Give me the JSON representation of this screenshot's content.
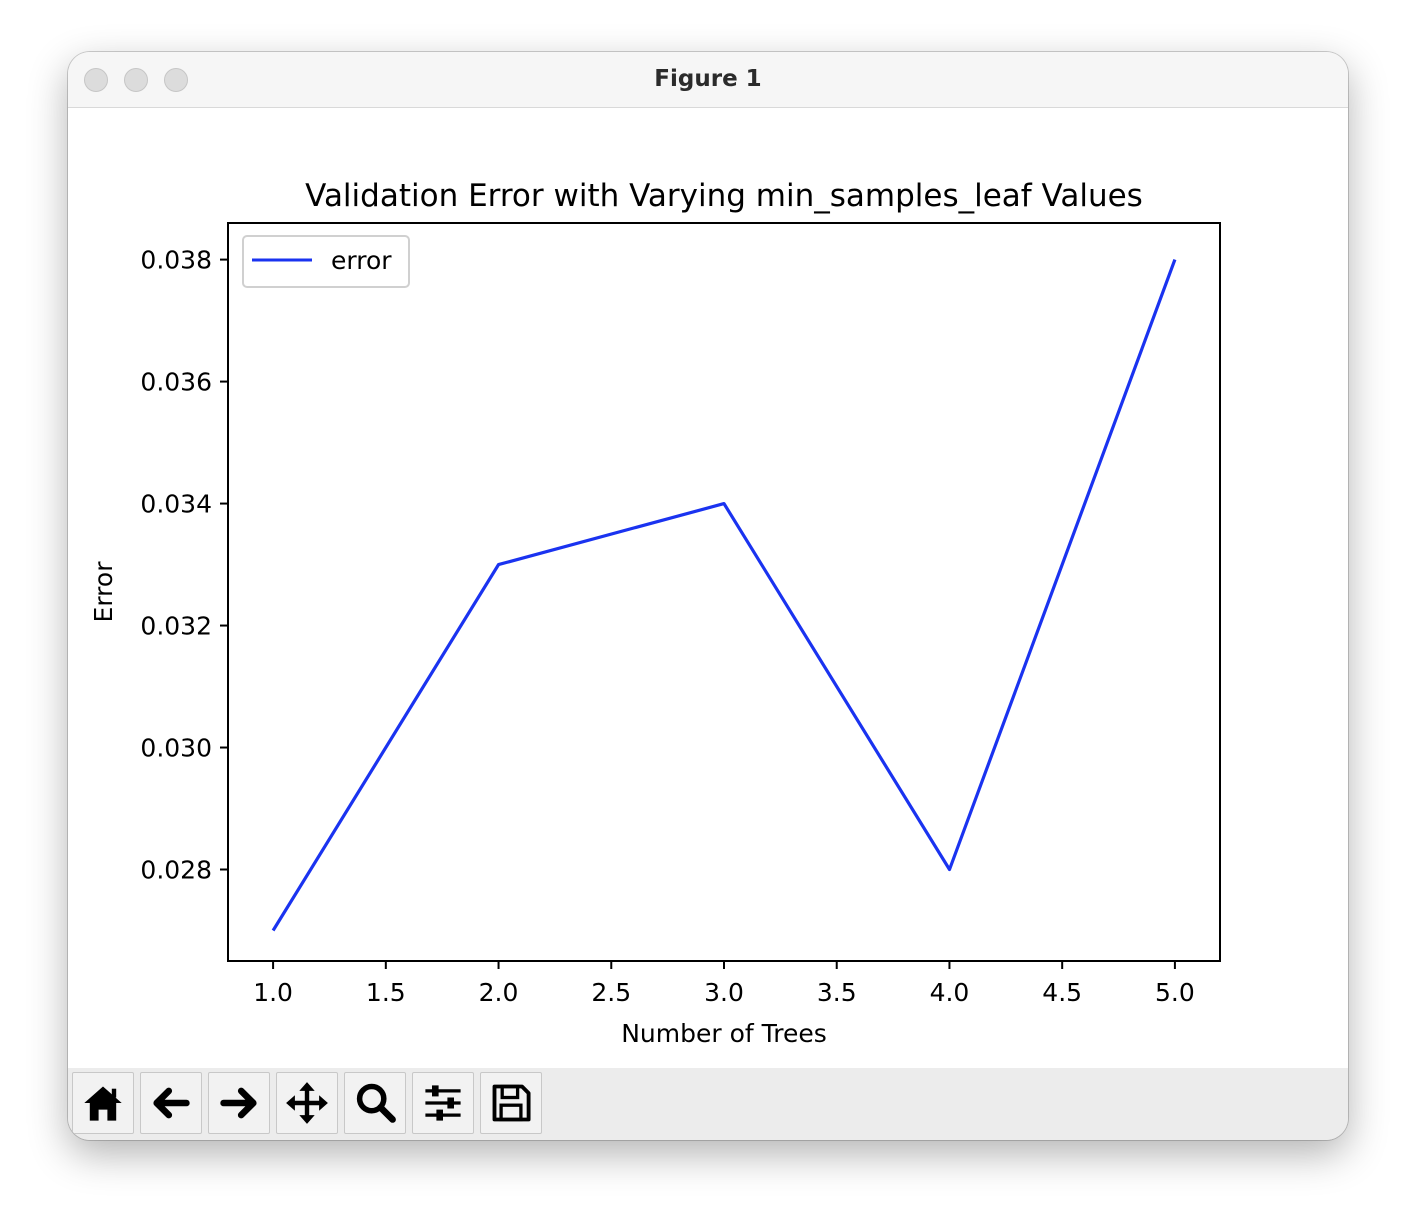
{
  "window": {
    "title": "Figure 1"
  },
  "toolbar": {
    "buttons": [
      {
        "name": "home-button",
        "icon": "home-icon"
      },
      {
        "name": "back-button",
        "icon": "arrow-left-icon"
      },
      {
        "name": "forward-button",
        "icon": "arrow-right-icon"
      },
      {
        "name": "pan-button",
        "icon": "move-icon"
      },
      {
        "name": "zoom-button",
        "icon": "magnifier-icon"
      },
      {
        "name": "configure-subplots-button",
        "icon": "sliders-icon"
      },
      {
        "name": "save-button",
        "icon": "floppy-disk-icon"
      }
    ]
  },
  "chart_data": {
    "type": "line",
    "title": "Validation Error with Varying min_samples_leaf Values",
    "xlabel": "Number of Trees",
    "ylabel": "Error",
    "xlim": [
      0.8,
      5.2
    ],
    "ylim": [
      0.0265,
      0.0386
    ],
    "xticks": [
      1.0,
      1.5,
      2.0,
      2.5,
      3.0,
      3.5,
      4.0,
      4.5,
      5.0
    ],
    "xtick_labels": [
      "1.0",
      "1.5",
      "2.0",
      "2.5",
      "3.0",
      "3.5",
      "4.0",
      "4.5",
      "5.0"
    ],
    "yticks": [
      0.028,
      0.03,
      0.032,
      0.034,
      0.036,
      0.038
    ],
    "ytick_labels": [
      "0.028",
      "0.030",
      "0.032",
      "0.034",
      "0.036",
      "0.038"
    ],
    "grid": false,
    "legend_position": "upper left",
    "series": [
      {
        "name": "error",
        "color": "#1a33f0",
        "x": [
          1,
          2,
          3,
          4,
          5
        ],
        "y": [
          0.027,
          0.033,
          0.034,
          0.028,
          0.038
        ]
      }
    ]
  }
}
